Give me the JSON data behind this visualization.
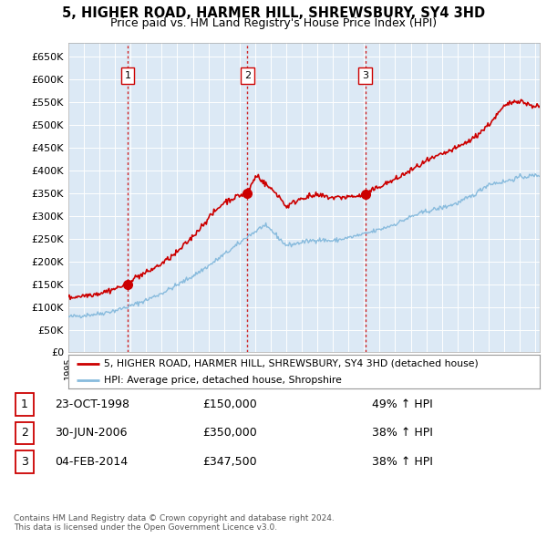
{
  "title": "5, HIGHER ROAD, HARMER HILL, SHREWSBURY, SY4 3HD",
  "subtitle": "Price paid vs. HM Land Registry's House Price Index (HPI)",
  "ylim": [
    0,
    680000
  ],
  "yticks": [
    0,
    50000,
    100000,
    150000,
    200000,
    250000,
    300000,
    350000,
    400000,
    450000,
    500000,
    550000,
    600000,
    650000
  ],
  "xlim_start": 1995.0,
  "xlim_end": 2025.3,
  "bg_color": "#dce9f5",
  "grid_color": "#ffffff",
  "sales": [
    {
      "date_num": 1998.81,
      "price": 150000,
      "label": "1"
    },
    {
      "date_num": 2006.5,
      "price": 350000,
      "label": "2"
    },
    {
      "date_num": 2014.09,
      "price": 347500,
      "label": "3"
    }
  ],
  "sale_color": "#cc0000",
  "sale_vline_color": "#cc0000",
  "hpi_color": "#88bbdd",
  "property_line_color": "#cc0000",
  "legend_entries": [
    "5, HIGHER ROAD, HARMER HILL, SHREWSBURY, SY4 3HD (detached house)",
    "HPI: Average price, detached house, Shropshire"
  ],
  "table_rows": [
    {
      "num": "1",
      "date": "23-OCT-1998",
      "price": "£150,000",
      "change": "49% ↑ HPI"
    },
    {
      "num": "2",
      "date": "30-JUN-2006",
      "price": "£350,000",
      "change": "38% ↑ HPI"
    },
    {
      "num": "3",
      "date": "04-FEB-2014",
      "price": "£347,500",
      "change": "38% ↑ HPI"
    }
  ],
  "footer": "Contains HM Land Registry data © Crown copyright and database right 2024.\nThis data is licensed under the Open Government Licence v3.0."
}
